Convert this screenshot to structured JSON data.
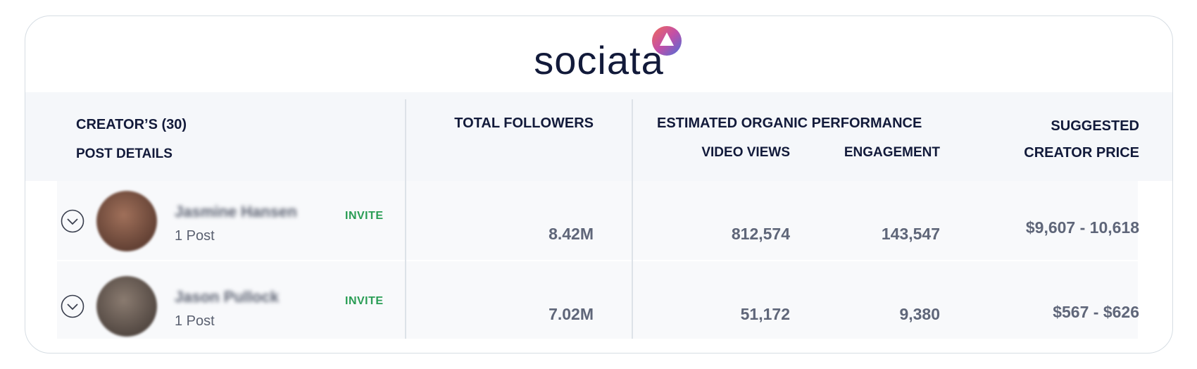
{
  "header": {
    "logo": "sociata"
  },
  "table": {
    "columns": {
      "creators": "CREATOR’S (30)",
      "post_details": "POST DETAILS",
      "total_followers": "TOTAL FOLLOWERS",
      "performance": "ESTIMATED ORGANIC PERFORMANCE",
      "video_views": "VIDEO VIEWS",
      "engagement": "ENGAGEMENT",
      "price_line1": "SUGGESTED",
      "price_line2": "CREATOR PRICE"
    },
    "rows": [
      {
        "name": "Jasmine Hansen",
        "posts": "1 Post",
        "action": "INVITE",
        "followers": "8.42M",
        "video_views": "812,574",
        "engagement": "143,547",
        "price": "$9,607 - 10,618"
      },
      {
        "name": "Jason Pullock",
        "posts": "1 Post",
        "action": "INVITE",
        "followers": "7.02M",
        "video_views": "51,172",
        "engagement": "9,380",
        "price": "$567 - $626"
      }
    ]
  }
}
